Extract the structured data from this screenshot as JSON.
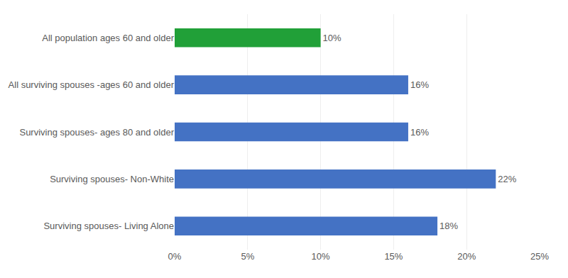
{
  "chart_data": {
    "type": "bar",
    "orientation": "horizontal",
    "categories": [
      "Surviving spouses- Living Alone",
      "Surviving spouses- Non-White",
      "Surviving spouses- ages 80 and older",
      "All surviving spouses -ages 60 and older",
      "All population ages 60 and older"
    ],
    "values": [
      18,
      22,
      16,
      16,
      10
    ],
    "value_labels": [
      "18%",
      "22%",
      "16%",
      "16%",
      "10%"
    ],
    "data_labels": true,
    "colors": [
      "#4472C4",
      "#4472C4",
      "#4472C4",
      "#4472C4",
      "#21A038"
    ],
    "xlim": [
      0,
      25
    ],
    "xticks": [
      {
        "value": 0,
        "label": "0%"
      },
      {
        "value": 5,
        "label": "5%"
      },
      {
        "value": 10,
        "label": "10%"
      },
      {
        "value": 15,
        "label": "15%"
      },
      {
        "value": 20,
        "label": "20%"
      },
      {
        "value": 25,
        "label": "25%"
      }
    ],
    "grid": true
  }
}
